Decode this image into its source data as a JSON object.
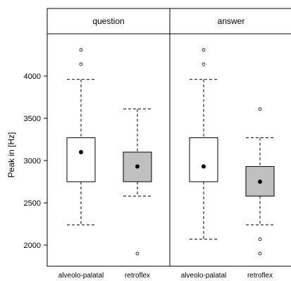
{
  "chart_data": {
    "type": "boxplot",
    "ylabel": "Peak in [Hz]",
    "ylim": [
      1750,
      4500
    ],
    "yticks": [
      2000,
      2500,
      3000,
      3500,
      4000
    ],
    "yticks_labels": [
      "2000",
      "2500",
      "3000",
      "3500",
      "4000"
    ],
    "colors": {
      "alveolo-palatal": "#ffffff",
      "retroflex": "#c0c0c0"
    },
    "panels": [
      {
        "name": "question",
        "groups": [
          {
            "category": "alveolo-palatal",
            "whisker_low": 2240,
            "q1": 2750,
            "q3": 3270,
            "whisker_high": 3960,
            "mean": 3100,
            "outliers": [
              4140,
              4310
            ]
          },
          {
            "category": "retroflex",
            "whisker_low": 2580,
            "q1": 2750,
            "q3": 3100,
            "whisker_high": 3610,
            "mean": 2930,
            "outliers": [
              1900
            ]
          }
        ]
      },
      {
        "name": "answer",
        "groups": [
          {
            "category": "alveolo-palatal",
            "whisker_low": 2070,
            "q1": 2750,
            "q3": 3270,
            "whisker_high": 3960,
            "mean": 2930,
            "outliers": [
              4140,
              4310
            ]
          },
          {
            "category": "retroflex",
            "whisker_low": 2240,
            "q1": 2580,
            "q3": 2930,
            "whisker_high": 3270,
            "mean": 2750,
            "outliers": [
              2070,
              1900,
              3610
            ]
          }
        ]
      }
    ]
  }
}
